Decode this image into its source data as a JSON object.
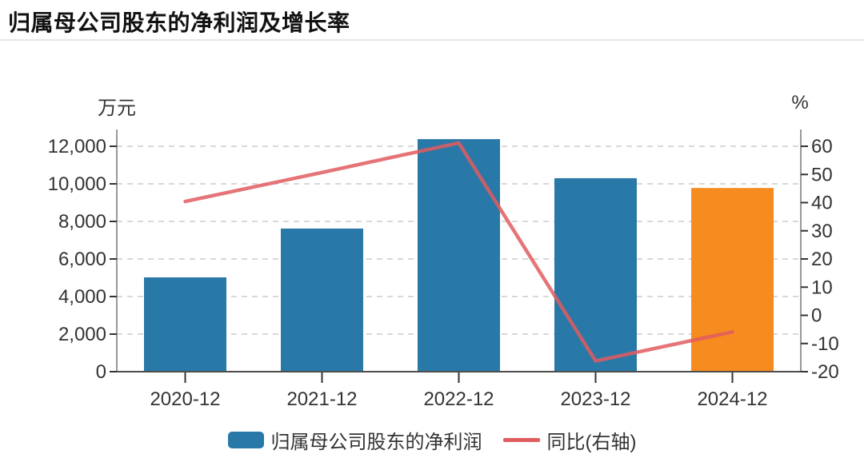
{
  "header": {
    "title": "归属母公司股东的净利润及增长率"
  },
  "colors": {
    "bar_blue": "#2878A8",
    "bar_orange": "#F68B1F",
    "line_red": "#E05C5F",
    "axis_text": "#333333",
    "grid": "#CCCCCC",
    "axis_line": "#999999",
    "x_axis_line": "#4D4D4D",
    "title": "#111111",
    "divider": "#E7E7E7"
  },
  "chart_data": {
    "type": "bar",
    "subtype": "dual-axis bar + line",
    "title": "归属母公司股东的净利润及增长率",
    "categories": [
      "2020-12",
      "2021-12",
      "2022-12",
      "2023-12",
      "2024-12"
    ],
    "series": [
      {
        "name": "归属母公司股东的净利润",
        "type": "bar",
        "yaxis": "left",
        "unit": "万元",
        "values": [
          5020,
          7620,
          12380,
          10300,
          9780
        ],
        "bar_colors": [
          "#2878A8",
          "#2878A8",
          "#2878A8",
          "#2878A8",
          "#F68B1F"
        ]
      },
      {
        "name": "同比(右轴)",
        "type": "line",
        "yaxis": "right",
        "unit": "%",
        "values": [
          40.4,
          50.7,
          61.2,
          -16.2,
          -5.9
        ],
        "color": "#E05C5F"
      }
    ],
    "left_axis": {
      "name": "万元",
      "min": 0,
      "tick_values": [
        0,
        2000,
        4000,
        6000,
        8000,
        10000,
        12000
      ],
      "tick_labels": [
        "0",
        "2,000",
        "4,000",
        "6,000",
        "8,000",
        "10,000",
        "12,000"
      ]
    },
    "right_axis": {
      "name": "%",
      "min": -20,
      "tick_values": [
        -20,
        -10,
        0,
        10,
        20,
        30,
        40,
        50,
        60
      ],
      "tick_labels": [
        "-20",
        "-10",
        "0",
        "10",
        "20",
        "30",
        "40",
        "50",
        "60"
      ]
    },
    "legend": {
      "position": "bottom",
      "items": [
        {
          "label": "归属母公司股东的净利润",
          "swatch": "bar",
          "color": "#2878A8"
        },
        {
          "label": "同比(右轴)",
          "swatch": "line",
          "color": "#E05C5F"
        }
      ]
    },
    "grid_style": "horizontal dashed lines"
  }
}
